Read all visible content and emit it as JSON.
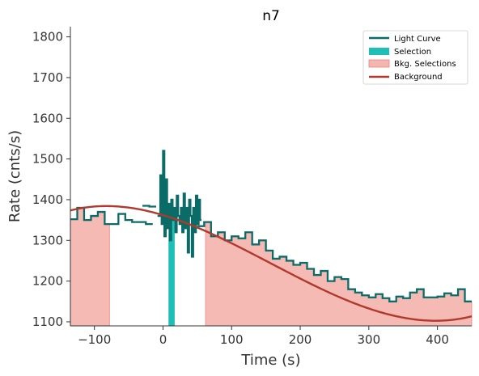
{
  "chart_data": {
    "type": "line",
    "title": "n7",
    "xlabel": "Time (s)",
    "ylabel": "Rate (cnts/s)",
    "xlim": [
      -135,
      450
    ],
    "ylim": [
      1090,
      1825
    ],
    "xticks": [
      -100,
      0,
      100,
      200,
      300,
      400
    ],
    "yticks": [
      1100,
      1200,
      1300,
      1400,
      1500,
      1600,
      1700,
      1800
    ],
    "grid": false,
    "legend_position": "top-right",
    "colors": {
      "light_curve": "#0b6b67",
      "selection": "#1fbfb8",
      "bkg_selection_fill": "#f4b6b0",
      "bkg_selection_edge": "#f08080",
      "background": "#b0392b",
      "axis": "#333333"
    },
    "legend": [
      {
        "label": "Light Curve",
        "kind": "line",
        "color": "#0b6b67"
      },
      {
        "label": "Selection",
        "kind": "patch",
        "color": "#1fbfb8"
      },
      {
        "label": "Bkg. Selections",
        "kind": "patch",
        "color": "#f4b6b0"
      },
      {
        "label": "Background",
        "kind": "line",
        "color": "#b0392b"
      }
    ],
    "selection": [
      8,
      17
    ],
    "bkg_selections": [
      [
        -135,
        -78
      ],
      [
        62,
        450
      ]
    ],
    "background_coeffs": [
      1362.09,
      -0.5023,
      -0.0024035,
      5.0935e-06
    ],
    "light_curve_segments": [
      {
        "edges": [
          -135,
          -125,
          -115,
          -105,
          -95,
          -85,
          -75,
          -65,
          -55,
          -45,
          -35,
          -25,
          -15
        ],
        "rates": [
          1352,
          1380,
          1350,
          1360,
          1370,
          1340,
          1340,
          1365,
          1350,
          1345,
          1345,
          1340
        ]
      },
      {
        "edges": [
          -30,
          -20,
          -10
        ],
        "rates": [
          1385,
          1383
        ]
      },
      {
        "edges": [
          -8,
          -4,
          -2,
          0,
          2,
          4,
          6,
          8,
          10,
          12,
          14,
          16,
          18,
          20,
          22,
          24,
          26,
          28,
          30,
          32,
          34,
          36,
          38,
          40,
          42,
          44,
          46,
          48,
          50,
          52,
          54,
          56
        ],
        "rates": [
          1360,
          1460,
          1340,
          1520,
          1310,
          1450,
          1330,
          1390,
          1300,
          1400,
          1350,
          1380,
          1320,
          1410,
          1360,
          1340,
          1380,
          1320,
          1415,
          1330,
          1380,
          1270,
          1400,
          1360,
          1260,
          1380,
          1320,
          1410,
          1340,
          1400,
          1350
        ]
      },
      {
        "edges": [
          50,
          60,
          70,
          80,
          90,
          100,
          110,
          120,
          130,
          140,
          150,
          160,
          170,
          180,
          190,
          200,
          210,
          220,
          230,
          240,
          250,
          260,
          270,
          280,
          290,
          300,
          310,
          320,
          330,
          340,
          350,
          360,
          370,
          380,
          390,
          400,
          410,
          420,
          430,
          440,
          450
        ],
        "rates": [
          1335,
          1345,
          1310,
          1320,
          1300,
          1310,
          1305,
          1320,
          1290,
          1300,
          1275,
          1255,
          1260,
          1250,
          1240,
          1245,
          1230,
          1215,
          1225,
          1200,
          1210,
          1205,
          1180,
          1172,
          1165,
          1160,
          1168,
          1158,
          1150,
          1162,
          1158,
          1172,
          1180,
          1160,
          1160,
          1162,
          1170,
          1165,
          1180,
          1150
        ]
      }
    ]
  }
}
